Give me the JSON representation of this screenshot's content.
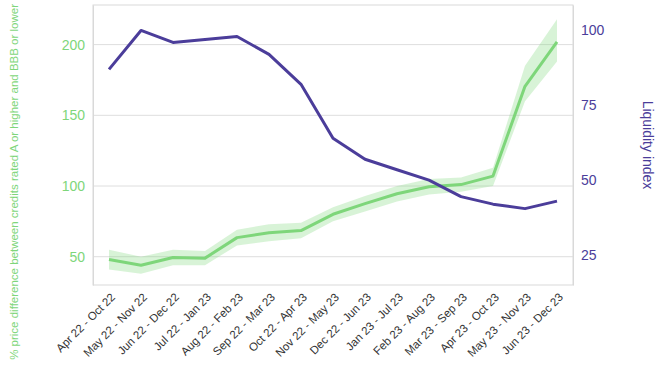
{
  "chart_data": {
    "type": "line",
    "y_label": "% price difference between credits rated A or higher and BBB or lower",
    "y2_label": "Liquidity index",
    "categories": [
      "Apr 22 - Oct 22",
      "May 22 - Nov 22",
      "Jun 22 - Dec 22",
      "Jul 22 - Jan 23",
      "Aug 22 - Feb 23",
      "Sep 22 - Mar 23",
      "Oct 22 - Apr 23",
      "Nov 22 - May 23",
      "Dec 22 - Jun 23",
      "Jan 23 - Jul 23",
      "Feb 23 - Aug 23",
      "Mar 23 - Sep 23",
      "Apr 23 - Oct 23",
      "May 23 - Nov 23",
      "Jun 23 - Dec 23"
    ],
    "series": [
      {
        "color": "#7ed67a",
        "values": [
          48,
          44,
          49.5,
          49,
          63.5,
          67,
          68.5,
          80,
          87.5,
          94.5,
          99.5,
          101,
          107,
          170.5,
          202
        ],
        "lower": [
          41,
          38,
          44,
          44,
          58,
          61,
          63,
          75,
          82,
          89,
          94,
          96,
          100,
          160,
          188
        ],
        "upper": [
          55,
          50,
          55,
          54,
          69,
          73,
          74,
          85,
          93,
          100,
          105,
          106,
          113,
          185,
          218
        ]
      },
      {
        "color": "#4b3d9a",
        "axis": "y2",
        "values": [
          87,
          100,
          96,
          97,
          98,
          92,
          82,
          64,
          57,
          53.5,
          50,
          44.5,
          42,
          40.5,
          43
        ]
      }
    ],
    "ylim": [
      30,
      228
    ],
    "yticks": [
      50,
      100,
      150,
      200
    ],
    "y2lim": [
      15,
      108.5
    ],
    "y2ticks": [
      25,
      50,
      75,
      100
    ],
    "grid": true
  }
}
